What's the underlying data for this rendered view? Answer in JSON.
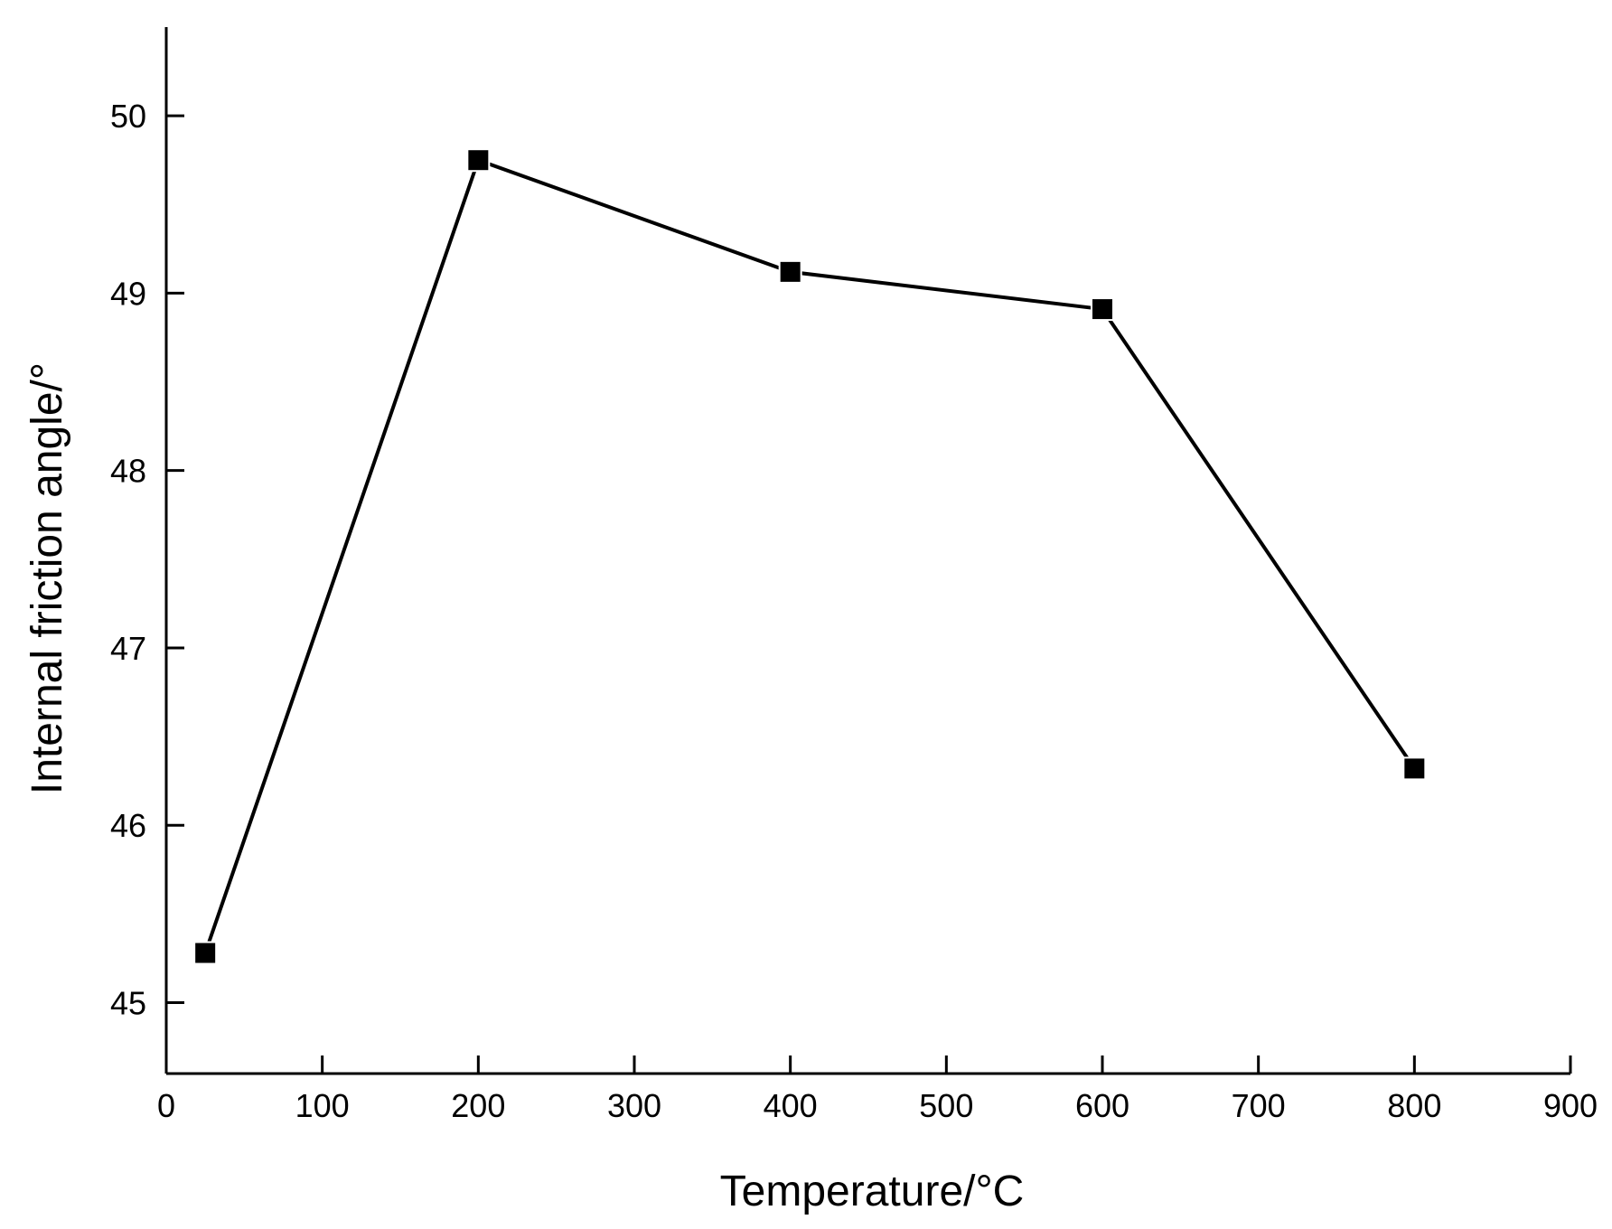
{
  "chart_data": {
    "type": "line",
    "title": "",
    "xlabel": "Temperature/°C",
    "ylabel": "Internal friction angle/°",
    "xlim": [
      0,
      900
    ],
    "ylim": [
      44.6,
      50.5
    ],
    "x_ticks": [
      0,
      100,
      200,
      300,
      400,
      500,
      600,
      700,
      800,
      900
    ],
    "y_ticks": [
      45,
      46,
      47,
      48,
      49,
      50
    ],
    "grid": false,
    "legend": "none",
    "series": [
      {
        "x": [
          25,
          200,
          400,
          600,
          800
        ],
        "y": [
          45.28,
          49.75,
          49.12,
          48.91,
          46.32
        ],
        "marker": "square",
        "color": "#000000"
      }
    ]
  }
}
